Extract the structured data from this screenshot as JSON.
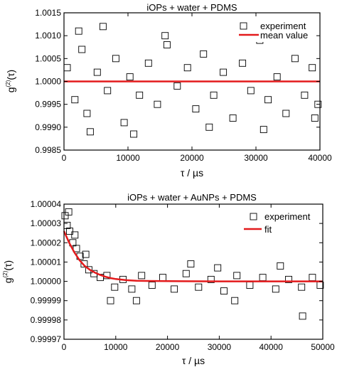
{
  "chart_data": [
    {
      "type": "scatter",
      "title": "iOPs + water + PDMS",
      "xlabel": "τ / µs",
      "ylabel_main": "g",
      "ylabel_sup": "(2)",
      "ylabel_tail": "(τ)",
      "xlim": [
        0,
        40000
      ],
      "ylim": [
        0.9985,
        1.0015
      ],
      "x_ticks": [
        0,
        10000,
        20000,
        30000,
        40000
      ],
      "x_tick_labels": [
        "0",
        "10000",
        "20000",
        "30000",
        "40000"
      ],
      "y_ticks": [
        0.9985,
        0.999,
        0.9995,
        1.0,
        1.0005,
        1.001,
        1.0015
      ],
      "y_tick_labels": [
        "0.9985",
        "0.9990",
        "0.9995",
        "1.0000",
        "1.0005",
        "1.0010",
        "1.0015"
      ],
      "legend_position": "top-right",
      "grid": false,
      "series": [
        {
          "name": "experiment",
          "kind": "markers",
          "marker": "open-square",
          "color": "#000000",
          "description": "noisy fluctuations around 1.0000, bulk within ±0.0004, outliers to about 0.99875 and 1.00125",
          "x": [
            500,
            1700,
            2800,
            3600,
            5200,
            6800,
            8100,
            9400,
            10300,
            11800,
            13200,
            14600,
            16100,
            17700,
            19300,
            20600,
            21800,
            23400,
            24900,
            26400,
            27900,
            29200,
            30600,
            31900,
            33300,
            34700,
            36100,
            37600,
            38800,
            39700,
            2300,
            4100,
            6100,
            10900,
            15800,
            22700,
            27100,
            31200,
            35300,
            39200
          ],
          "y": [
            1.0003,
            0.9996,
            1.0007,
            0.9993,
            1.0002,
            0.9998,
            1.0005,
            0.9991,
            1.0001,
            0.9997,
            1.0004,
            0.9995,
            1.0008,
            0.9999,
            1.0003,
            0.9994,
            1.0006,
            0.9997,
            1.0002,
            0.9992,
            1.0004,
            0.9998,
            1.0009,
            0.9996,
            1.0001,
            0.9993,
            1.0005,
            0.9997,
            1.0003,
            0.9995,
            1.0011,
            0.9989,
            1.0012,
            0.99885,
            1.001,
            0.999,
            1.0011,
            0.99895,
            1.001,
            0.9992
          ]
        },
        {
          "name": "mean value",
          "kind": "line",
          "color": "#e31a1c",
          "x": [
            0,
            40000
          ],
          "y": [
            1.0,
            1.0
          ]
        }
      ]
    },
    {
      "type": "scatter",
      "title": "iOPs + water + AuNPs + PDMS",
      "xlabel": "τ / µs",
      "ylabel_main": "g",
      "ylabel_sup": "(2)",
      "ylabel_tail": "(τ)",
      "xlim": [
        0,
        50000
      ],
      "ylim": [
        0.99997,
        1.00004
      ],
      "x_ticks": [
        0,
        10000,
        20000,
        30000,
        40000,
        50000
      ],
      "x_tick_labels": [
        "0",
        "10000",
        "20000",
        "30000",
        "40000",
        "50000"
      ],
      "y_ticks": [
        0.99997,
        0.99998,
        0.99999,
        1.0,
        1.00001,
        1.00002,
        1.00003,
        1.00004
      ],
      "y_tick_labels": [
        "0.99997",
        "0.99998",
        "0.99999",
        "1.00000",
        "1.00001",
        "1.00002",
        "1.00003",
        "1.00004"
      ],
      "legend_position": "top-right",
      "grid": false,
      "series": [
        {
          "name": "experiment",
          "kind": "markers",
          "marker": "open-square",
          "color": "#000000",
          "description": "starts near 1.00003 at τ≈0, decays to ~1.00000 by τ≈10000, then noisy within about ±0.00001",
          "x": [
            200,
            600,
            1100,
            1700,
            2400,
            3100,
            3900,
            4800,
            5800,
            7000,
            8300,
            9800,
            11400,
            13100,
            15000,
            17000,
            19100,
            21300,
            23600,
            26000,
            28400,
            30900,
            33400,
            35900,
            38400,
            40900,
            43400,
            45900,
            48000,
            49500,
            900,
            2100,
            14000,
            24500,
            33000,
            41800,
            46100,
            4200,
            9000,
            29700
          ],
          "y": [
            1.000034,
            1.000029,
            1.000026,
            1.00002,
            1.000017,
            1.000013,
            1.000009,
            1.000006,
            1.000004,
            1.000002,
            1.000003,
            0.999997,
            1.000001,
            0.999996,
            1.000003,
            0.999998,
            1.000002,
            0.999996,
            1.000004,
            0.999997,
            1.000001,
            0.999995,
            1.000003,
            0.999998,
            1.000002,
            0.999996,
            1.000001,
            0.999997,
            1.000002,
            0.999998,
            1.000036,
            1.000024,
            0.99999,
            1.000009,
            0.99999,
            1.000008,
            0.999982,
            1.000014,
            0.99999,
            1.000007
          ]
        },
        {
          "name": "fit",
          "kind": "line",
          "color": "#e31a1c",
          "x": [
            0,
            1000,
            2000,
            3000,
            4000,
            5000,
            6000,
            7000,
            8000,
            9000,
            10000,
            12000,
            14000,
            16000,
            20000,
            30000,
            40000,
            50000
          ],
          "y": [
            1.000026,
            1.00002,
            1.000015,
            1.000011,
            1.000008,
            1.000006,
            1.0000045,
            1.0000033,
            1.0000024,
            1.0000017,
            1.0000012,
            1.0000006,
            1.0000003,
            1.0000002,
            1.0000001,
            1.0,
            1.0,
            1.0
          ]
        }
      ]
    }
  ]
}
